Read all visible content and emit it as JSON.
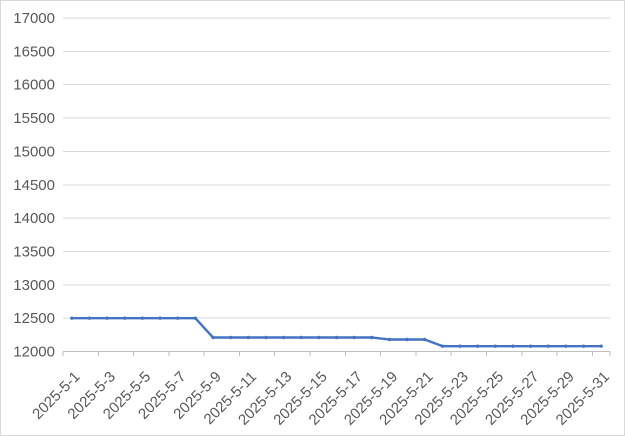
{
  "chart_data": {
    "type": "line",
    "title": "",
    "xlabel": "",
    "ylabel": "",
    "x": [
      "2025-5-1",
      "2025-5-2",
      "2025-5-3",
      "2025-5-4",
      "2025-5-5",
      "2025-5-6",
      "2025-5-7",
      "2025-5-8",
      "2025-5-9",
      "2025-5-10",
      "2025-5-11",
      "2025-5-12",
      "2025-5-13",
      "2025-5-14",
      "2025-5-15",
      "2025-5-16",
      "2025-5-17",
      "2025-5-18",
      "2025-5-19",
      "2025-5-20",
      "2025-5-21",
      "2025-5-22",
      "2025-5-23",
      "2025-5-24",
      "2025-5-25",
      "2025-5-26",
      "2025-5-27",
      "2025-5-28",
      "2025-5-29",
      "2025-5-30",
      "2025-5-31"
    ],
    "series": [
      {
        "values": [
          12500,
          12500,
          12500,
          12500,
          12500,
          12500,
          12500,
          12500,
          12210,
          12210,
          12210,
          12210,
          12210,
          12210,
          12210,
          12210,
          12210,
          12210,
          12180,
          12180,
          12180,
          12080,
          12080,
          12080,
          12080,
          12080,
          12080,
          12080,
          12080,
          12080,
          12080
        ]
      }
    ],
    "ylim": [
      12000,
      17000
    ],
    "yticks": [
      12000,
      12500,
      13000,
      13500,
      14000,
      14500,
      15000,
      15500,
      16000,
      16500,
      17000
    ],
    "xtick_label_every": 2,
    "x_label_rotation_deg": -45,
    "grid": true,
    "legend": false,
    "colors": {
      "line": "#4472C4",
      "marker": "#4472C4",
      "gridline": "#D9D9D9",
      "axis": "#BFBFBF",
      "tick": "#BFBFBF",
      "label": "#595959",
      "background": "#FFFFFF",
      "border": "#D9D9D9"
    }
  }
}
